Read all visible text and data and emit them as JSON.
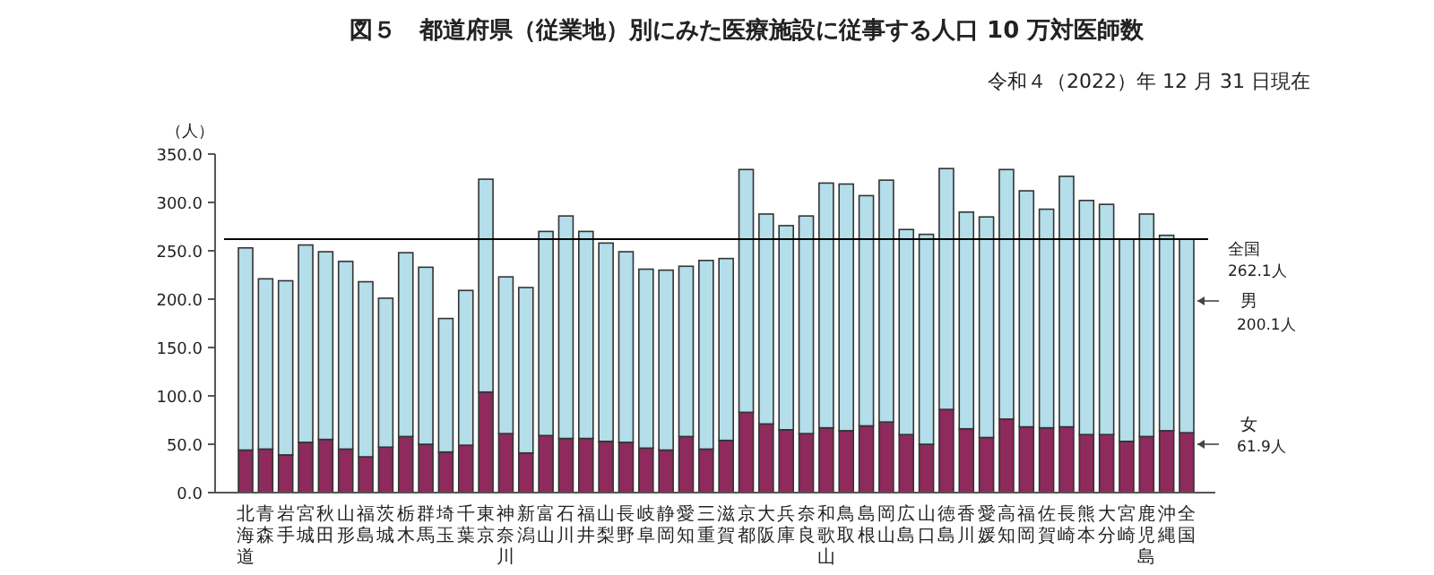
{
  "chart_data": {
    "type": "bar",
    "stacked": true,
    "title": "図５　都道府県（従業地）別にみた医療施設に従事する人口 10 万対医師数",
    "subtitle": "令和４（2022）年 12 月 31 日現在",
    "ylabel": "（人）",
    "categories": [
      "北海道",
      "青森",
      "岩手",
      "宮城",
      "秋田",
      "山形",
      "福島",
      "茨城",
      "栃木",
      "群馬",
      "埼玉",
      "千葉",
      "東京",
      "神奈川",
      "新潟",
      "富山",
      "石川",
      "福井",
      "山梨",
      "長野",
      "岐阜",
      "静岡",
      "愛知",
      "三重",
      "滋賀",
      "京都",
      "大阪",
      "兵庫",
      "奈良",
      "和歌山",
      "鳥取",
      "島根",
      "岡山",
      "広島",
      "山口",
      "徳島",
      "香川",
      "愛媛",
      "高知",
      "福岡",
      "佐賀",
      "長崎",
      "熊本",
      "大分",
      "宮崎",
      "鹿児島",
      "沖縄",
      "全国"
    ],
    "series": [
      {
        "name": "女",
        "color": "#8e2a5c",
        "values": [
          44,
          45,
          39,
          52,
          55,
          45,
          37,
          47,
          58,
          50,
          42,
          49,
          104,
          61,
          41,
          59,
          56,
          56,
          53,
          52,
          46,
          44,
          58,
          45,
          54,
          83,
          71,
          65,
          61,
          67,
          64,
          69,
          73,
          60,
          50,
          86,
          66,
          57,
          76,
          68,
          67,
          68,
          60,
          60,
          53,
          58,
          64,
          61.9
        ]
      },
      {
        "name": "男",
        "color": "#b3deea",
        "values": [
          209,
          176,
          180,
          204,
          194,
          194,
          181,
          154,
          190,
          183,
          138,
          160,
          220,
          162,
          171,
          211,
          230,
          214,
          205,
          197,
          185,
          186,
          176,
          195,
          188,
          251,
          217,
          211,
          225,
          253,
          255,
          238,
          250,
          212,
          217,
          249,
          224,
          228,
          258,
          244,
          226,
          259,
          242,
          238,
          209,
          230,
          202,
          200.1
        ]
      }
    ],
    "ylim": [
      0,
      350
    ],
    "yticks": [
      {
        "value": 0,
        "label": "0.0"
      },
      {
        "value": 50,
        "label": "50.0"
      },
      {
        "value": 100,
        "label": "100.0"
      },
      {
        "value": 150,
        "label": "150.0"
      },
      {
        "value": 200,
        "label": "200.0"
      },
      {
        "value": 250,
        "label": "250.0"
      },
      {
        "value": 300,
        "label": "300.0"
      },
      {
        "value": 350,
        "label": "350.0"
      }
    ],
    "ref_lines": [
      {
        "axis": "y",
        "value": 262.1,
        "label": "全国",
        "color": "#000000"
      }
    ],
    "annotations": [
      "262.1人",
      "200.1人",
      "61.9人"
    ],
    "grid": false,
    "legend": false
  }
}
